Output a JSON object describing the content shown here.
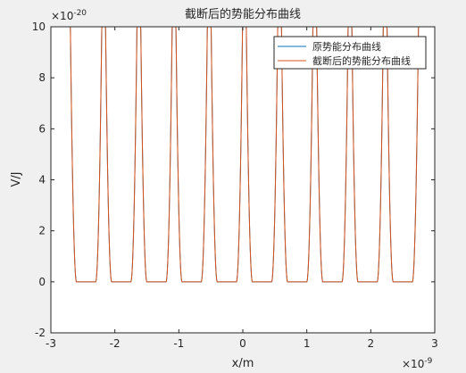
{
  "window": {
    "background": "#f0f0f0"
  },
  "chart_data": {
    "type": "line",
    "title": "截断后的势能分布曲线",
    "xlabel": "x/m",
    "ylabel": "V/J",
    "x_exponent_label": "×10",
    "x_exponent_power": "-9",
    "y_exponent_label": "×10",
    "y_exponent_power": "-20",
    "xlim": [
      -3,
      3
    ],
    "ylim": [
      -2,
      10
    ],
    "x_ticks": [
      -3,
      -2,
      -1,
      0,
      1,
      2,
      3
    ],
    "x_tick_labels": [
      "-3",
      "-2",
      "-1",
      "0",
      "1",
      "2",
      "3"
    ],
    "y_ticks": [
      -2,
      0,
      2,
      4,
      6,
      8,
      10
    ],
    "y_tick_labels": [
      "-2",
      "0",
      "2",
      "4",
      "6",
      "8",
      "10"
    ],
    "grid": false,
    "legend_position": "top-right",
    "series": [
      {
        "name": "原势能分布曲线",
        "color": "#0072bd"
      },
      {
        "name": "截断后的势能分布曲线",
        "color": "#d95319"
      }
    ],
    "curve_description": {
      "minima_x": [
        -2.45,
        -1.9,
        -1.35,
        -0.8,
        -0.25,
        0.3,
        0.85,
        1.4,
        1.95,
        2.5
      ],
      "flat_halfwidth": 0.15,
      "flat_value": 0,
      "peak_value": 10
    }
  }
}
